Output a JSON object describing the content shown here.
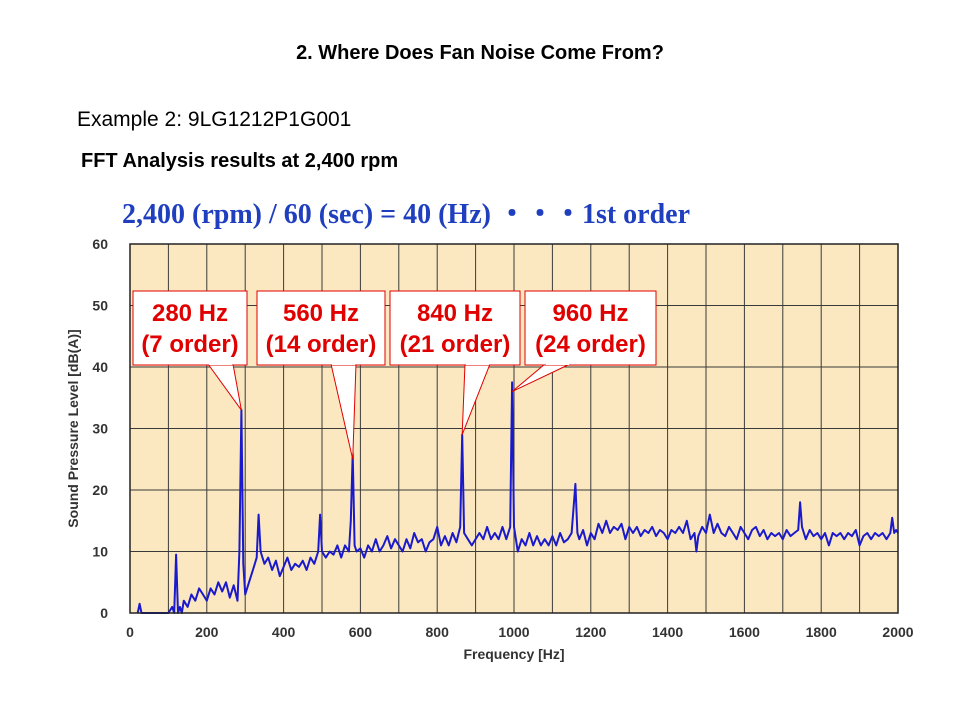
{
  "slide": {
    "title": "2. Where Does Fan Noise Come From?",
    "example": "Example 2: 9LG1212P1G001",
    "fft_heading": "FFT Analysis results at 2,400 rpm",
    "formula": "2,400 (rpm) / 60 (sec) =  40 (Hz)  ・・・1st order"
  },
  "colors": {
    "plot_background": "#fbe8c0",
    "grid": "#3a3a3a",
    "series": "#1a1acc",
    "callout_text": "#e00000",
    "callout_border": "#e00000",
    "formula_text": "#1f3fbf"
  },
  "chart_data": {
    "type": "line",
    "xlabel": "Frequency [Hz]",
    "ylabel": "Sound Pressure Level [dB(A)]",
    "xlim": [
      0,
      2000
    ],
    "ylim": [
      0,
      60
    ],
    "x_ticks": [
      0,
      200,
      400,
      600,
      800,
      1000,
      1200,
      1400,
      1600,
      1800,
      2000
    ],
    "y_ticks": [
      0,
      10,
      20,
      30,
      40,
      50,
      60
    ],
    "grid": true,
    "x_grid_step": 100,
    "series": [
      {
        "points": [
          [
            20,
            0
          ],
          [
            25,
            1.5
          ],
          [
            30,
            0
          ],
          [
            100,
            0
          ],
          [
            110,
            1
          ],
          [
            115,
            0
          ],
          [
            120,
            9.5
          ],
          [
            125,
            0
          ],
          [
            130,
            1
          ],
          [
            135,
            0
          ],
          [
            140,
            2
          ],
          [
            150,
            1
          ],
          [
            160,
            3
          ],
          [
            170,
            2
          ],
          [
            180,
            4
          ],
          [
            190,
            3
          ],
          [
            200,
            2
          ],
          [
            210,
            4
          ],
          [
            220,
            3
          ],
          [
            230,
            5
          ],
          [
            240,
            3.5
          ],
          [
            250,
            5
          ],
          [
            260,
            2.5
          ],
          [
            270,
            4.5
          ],
          [
            280,
            2
          ],
          [
            285,
            10
          ],
          [
            290,
            33
          ],
          [
            295,
            8
          ],
          [
            300,
            3
          ],
          [
            310,
            5
          ],
          [
            320,
            7
          ],
          [
            330,
            9
          ],
          [
            335,
            16
          ],
          [
            340,
            10
          ],
          [
            350,
            8
          ],
          [
            360,
            9
          ],
          [
            370,
            7
          ],
          [
            380,
            8.5
          ],
          [
            390,
            6
          ],
          [
            400,
            7.5
          ],
          [
            410,
            9
          ],
          [
            420,
            7
          ],
          [
            430,
            8
          ],
          [
            440,
            7.5
          ],
          [
            450,
            8.5
          ],
          [
            460,
            7
          ],
          [
            470,
            9
          ],
          [
            480,
            8
          ],
          [
            490,
            10
          ],
          [
            495,
            16
          ],
          [
            500,
            10
          ],
          [
            510,
            9
          ],
          [
            520,
            10
          ],
          [
            530,
            9.5
          ],
          [
            540,
            11
          ],
          [
            550,
            9
          ],
          [
            560,
            11
          ],
          [
            570,
            10
          ],
          [
            575,
            15
          ],
          [
            580,
            26
          ],
          [
            585,
            11
          ],
          [
            590,
            10
          ],
          [
            600,
            10.5
          ],
          [
            610,
            9
          ],
          [
            620,
            11
          ],
          [
            630,
            10
          ],
          [
            640,
            12
          ],
          [
            650,
            10
          ],
          [
            660,
            11
          ],
          [
            670,
            12.5
          ],
          [
            680,
            10.5
          ],
          [
            690,
            12
          ],
          [
            700,
            11
          ],
          [
            710,
            10
          ],
          [
            720,
            12
          ],
          [
            730,
            10.5
          ],
          [
            740,
            13
          ],
          [
            750,
            11.5
          ],
          [
            760,
            12
          ],
          [
            770,
            10
          ],
          [
            780,
            11.5
          ],
          [
            790,
            12
          ],
          [
            800,
            14
          ],
          [
            810,
            11
          ],
          [
            820,
            12.5
          ],
          [
            830,
            11
          ],
          [
            840,
            13
          ],
          [
            850,
            11.5
          ],
          [
            860,
            14
          ],
          [
            865,
            29
          ],
          [
            870,
            13
          ],
          [
            880,
            12
          ],
          [
            890,
            11
          ],
          [
            900,
            12
          ],
          [
            910,
            13
          ],
          [
            920,
            12
          ],
          [
            930,
            14
          ],
          [
            940,
            12
          ],
          [
            950,
            13
          ],
          [
            960,
            12
          ],
          [
            970,
            14
          ],
          [
            980,
            12
          ],
          [
            990,
            14
          ],
          [
            995,
            37.5
          ],
          [
            1000,
            14
          ],
          [
            1010,
            10
          ],
          [
            1020,
            12
          ],
          [
            1030,
            11
          ],
          [
            1040,
            13
          ],
          [
            1050,
            11
          ],
          [
            1060,
            12.5
          ],
          [
            1070,
            11
          ],
          [
            1080,
            12
          ],
          [
            1090,
            11
          ],
          [
            1100,
            12.5
          ],
          [
            1110,
            11
          ],
          [
            1120,
            13
          ],
          [
            1130,
            11.5
          ],
          [
            1140,
            12
          ],
          [
            1150,
            13
          ],
          [
            1160,
            21
          ],
          [
            1165,
            13
          ],
          [
            1170,
            12
          ],
          [
            1180,
            13.5
          ],
          [
            1190,
            11
          ],
          [
            1200,
            13
          ],
          [
            1210,
            12
          ],
          [
            1220,
            14.5
          ],
          [
            1230,
            13
          ],
          [
            1240,
            15
          ],
          [
            1250,
            13
          ],
          [
            1260,
            14
          ],
          [
            1270,
            13.5
          ],
          [
            1280,
            14.5
          ],
          [
            1290,
            12
          ],
          [
            1300,
            14
          ],
          [
            1310,
            13
          ],
          [
            1320,
            14
          ],
          [
            1330,
            12.5
          ],
          [
            1340,
            13.5
          ],
          [
            1350,
            13
          ],
          [
            1360,
            14
          ],
          [
            1370,
            12.5
          ],
          [
            1380,
            13.5
          ],
          [
            1390,
            13
          ],
          [
            1400,
            12
          ],
          [
            1410,
            13.5
          ],
          [
            1420,
            13
          ],
          [
            1430,
            14
          ],
          [
            1440,
            13
          ],
          [
            1450,
            15
          ],
          [
            1460,
            12
          ],
          [
            1470,
            13
          ],
          [
            1475,
            10
          ],
          [
            1480,
            12.5
          ],
          [
            1490,
            14
          ],
          [
            1500,
            13
          ],
          [
            1510,
            16
          ],
          [
            1520,
            13
          ],
          [
            1530,
            14.5
          ],
          [
            1540,
            13
          ],
          [
            1550,
            12.5
          ],
          [
            1560,
            14
          ],
          [
            1570,
            13
          ],
          [
            1580,
            12
          ],
          [
            1590,
            14
          ],
          [
            1600,
            13
          ],
          [
            1610,
            12
          ],
          [
            1620,
            13.5
          ],
          [
            1630,
            14
          ],
          [
            1640,
            12.5
          ],
          [
            1650,
            13.5
          ],
          [
            1660,
            12
          ],
          [
            1670,
            13
          ],
          [
            1680,
            12.5
          ],
          [
            1690,
            13
          ],
          [
            1700,
            12
          ],
          [
            1710,
            13.5
          ],
          [
            1720,
            12.5
          ],
          [
            1730,
            13
          ],
          [
            1740,
            13.5
          ],
          [
            1745,
            18
          ],
          [
            1750,
            14
          ],
          [
            1760,
            12
          ],
          [
            1770,
            13.5
          ],
          [
            1780,
            12.5
          ],
          [
            1790,
            13
          ],
          [
            1800,
            12
          ],
          [
            1810,
            13
          ],
          [
            1820,
            11
          ],
          [
            1830,
            13
          ],
          [
            1840,
            12.5
          ],
          [
            1850,
            13
          ],
          [
            1860,
            12
          ],
          [
            1870,
            13
          ],
          [
            1880,
            12.5
          ],
          [
            1890,
            13.5
          ],
          [
            1900,
            11
          ],
          [
            1910,
            12.5
          ],
          [
            1920,
            13
          ],
          [
            1930,
            12
          ],
          [
            1940,
            13
          ],
          [
            1950,
            12.5
          ],
          [
            1960,
            13
          ],
          [
            1970,
            12
          ],
          [
            1980,
            13
          ],
          [
            1985,
            15.5
          ],
          [
            1990,
            13
          ],
          [
            1995,
            13.5
          ],
          [
            2000,
            13
          ]
        ]
      }
    ],
    "annotations": [
      {
        "line1": "280 Hz",
        "line2": "(7 order)",
        "tip_x": 290,
        "tip_y": 33
      },
      {
        "line1": "560 Hz",
        "line2": "(14 order)",
        "tip_x": 580,
        "tip_y": 25
      },
      {
        "line1": "840 Hz",
        "line2": "(21 order)",
        "tip_x": 865,
        "tip_y": 29
      },
      {
        "line1": "960 Hz",
        "line2": "(24 order)",
        "tip_x": 995,
        "tip_y": 36
      }
    ]
  }
}
